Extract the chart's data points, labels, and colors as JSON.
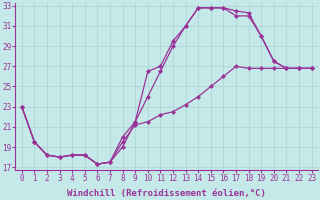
{
  "xlabel": "Windchill (Refroidissement éolien,°C)",
  "xlim": [
    0,
    23
  ],
  "ylim": [
    17,
    33
  ],
  "xticks": [
    0,
    1,
    2,
    3,
    4,
    5,
    6,
    7,
    8,
    9,
    10,
    11,
    12,
    13,
    14,
    15,
    16,
    17,
    18,
    19,
    20,
    21,
    22,
    23
  ],
  "yticks": [
    17,
    19,
    21,
    23,
    25,
    27,
    29,
    31,
    33
  ],
  "bg_color": "#c5e8e8",
  "grid_color": "#a8d4d4",
  "line_color": "#993399",
  "curve_bottom_x": [
    0,
    1,
    2,
    3,
    4,
    5,
    6,
    7,
    8,
    9,
    10,
    11,
    12,
    13,
    14,
    15,
    16,
    17,
    18,
    19,
    20,
    21,
    22,
    23
  ],
  "curve_bottom_y": [
    23.0,
    19.5,
    18.2,
    18.0,
    18.2,
    18.2,
    17.3,
    17.5,
    19.5,
    21.2,
    21.5,
    22.2,
    22.5,
    23.2,
    24.0,
    25.0,
    26.0,
    27.0,
    26.8,
    26.8,
    26.8,
    26.8,
    26.8,
    26.8
  ],
  "curve_top_x": [
    0,
    1,
    2,
    3,
    4,
    5,
    6,
    7,
    8,
    9,
    10,
    11,
    12,
    13,
    14,
    15,
    16,
    17,
    18,
    19,
    20,
    21,
    22,
    23
  ],
  "curve_top_y": [
    23.0,
    19.5,
    18.2,
    18.0,
    18.2,
    18.2,
    17.3,
    17.5,
    20.0,
    21.5,
    26.5,
    27.0,
    29.5,
    31.0,
    32.8,
    32.8,
    32.8,
    32.5,
    32.3,
    30.0,
    27.5,
    26.8,
    26.8,
    26.8
  ],
  "curve_mid_x": [
    0,
    1,
    2,
    3,
    4,
    5,
    6,
    7,
    8,
    9,
    10,
    11,
    12,
    13,
    14,
    15,
    16,
    17,
    18,
    19,
    20,
    21,
    22,
    23
  ],
  "curve_mid_y": [
    23.0,
    19.5,
    18.2,
    18.0,
    18.2,
    18.2,
    17.3,
    17.5,
    19.0,
    21.5,
    24.0,
    26.5,
    29.0,
    31.0,
    32.8,
    32.8,
    32.8,
    32.0,
    32.0,
    30.0,
    27.5,
    26.8,
    26.8,
    26.8
  ],
  "lw": 0.9,
  "ms": 2.5,
  "tick_fs": 5.5,
  "xlabel_fs": 6.5
}
